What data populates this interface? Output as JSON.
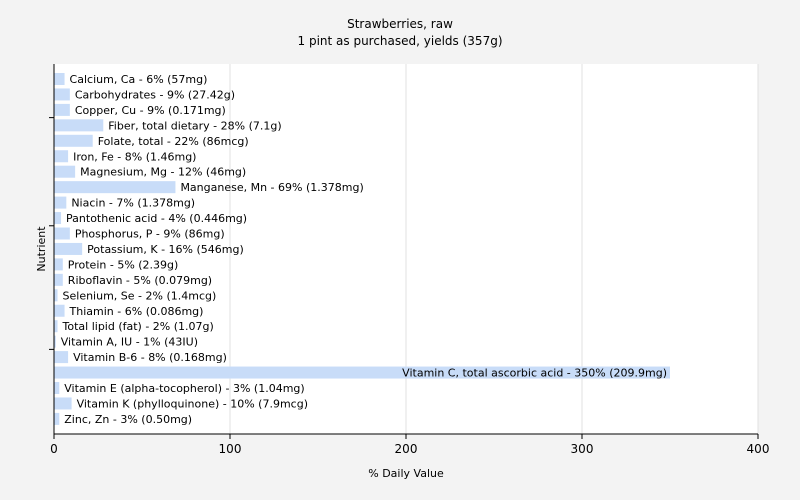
{
  "chart_data": {
    "type": "bar",
    "orientation": "horizontal",
    "title": "Strawberries, raw",
    "subtitle": "1 pint as purchased, yields (357g)",
    "xlabel": "% Daily Value",
    "ylabel": "Nutrient",
    "xlim": [
      0,
      400
    ],
    "xticks": [
      "0",
      "100",
      "200",
      "300",
      "400"
    ],
    "grid": true,
    "bar_color": "#c8dcf8",
    "categories": [
      "Calcium, Ca",
      "Carbohydrates",
      "Copper, Cu",
      "Fiber, total dietary",
      "Folate, total",
      "Iron, Fe",
      "Magnesium, Mg",
      "Manganese, Mn",
      "Niacin",
      "Pantothenic acid",
      "Phosphorus, P",
      "Potassium, K",
      "Protein",
      "Riboflavin",
      "Selenium, Se",
      "Thiamin",
      "Total lipid (fat)",
      "Vitamin A, IU",
      "Vitamin B-6",
      "Vitamin C, total ascorbic acid",
      "Vitamin E (alpha-tocopherol)",
      "Vitamin K (phylloquinone)",
      "Zinc, Zn"
    ],
    "values": [
      6,
      9,
      9,
      28,
      22,
      8,
      12,
      69,
      7,
      4,
      9,
      16,
      5,
      5,
      2,
      6,
      2,
      1,
      8,
      350,
      3,
      10,
      3
    ],
    "labels": [
      "Calcium, Ca - 6% (57mg)",
      "Carbohydrates - 9% (27.42g)",
      "Copper, Cu - 9% (0.171mg)",
      "Fiber, total dietary - 28% (7.1g)",
      "Folate, total - 22% (86mcg)",
      "Iron, Fe - 8% (1.46mg)",
      "Magnesium, Mg - 12% (46mg)",
      "Manganese, Mn - 69% (1.378mg)",
      "Niacin - 7% (1.378mg)",
      "Pantothenic acid - 4% (0.446mg)",
      "Phosphorus, P - 9% (86mg)",
      "Potassium, K - 16% (546mg)",
      "Protein - 5% (2.39g)",
      "Riboflavin - 5% (0.079mg)",
      "Selenium, Se - 2% (1.4mcg)",
      "Thiamin - 6% (0.086mg)",
      "Total lipid (fat) - 2% (1.07g)",
      "Vitamin A, IU - 1% (43IU)",
      "Vitamin B-6 - 8% (0.168mg)",
      "Vitamin C, total ascorbic acid - 350% (209.9mg)",
      "Vitamin E (alpha-tocopherol) - 3% (1.04mg)",
      "Vitamin K (phylloquinone) - 10% (7.9mcg)",
      "Zinc, Zn - 3% (0.50mg)"
    ]
  }
}
